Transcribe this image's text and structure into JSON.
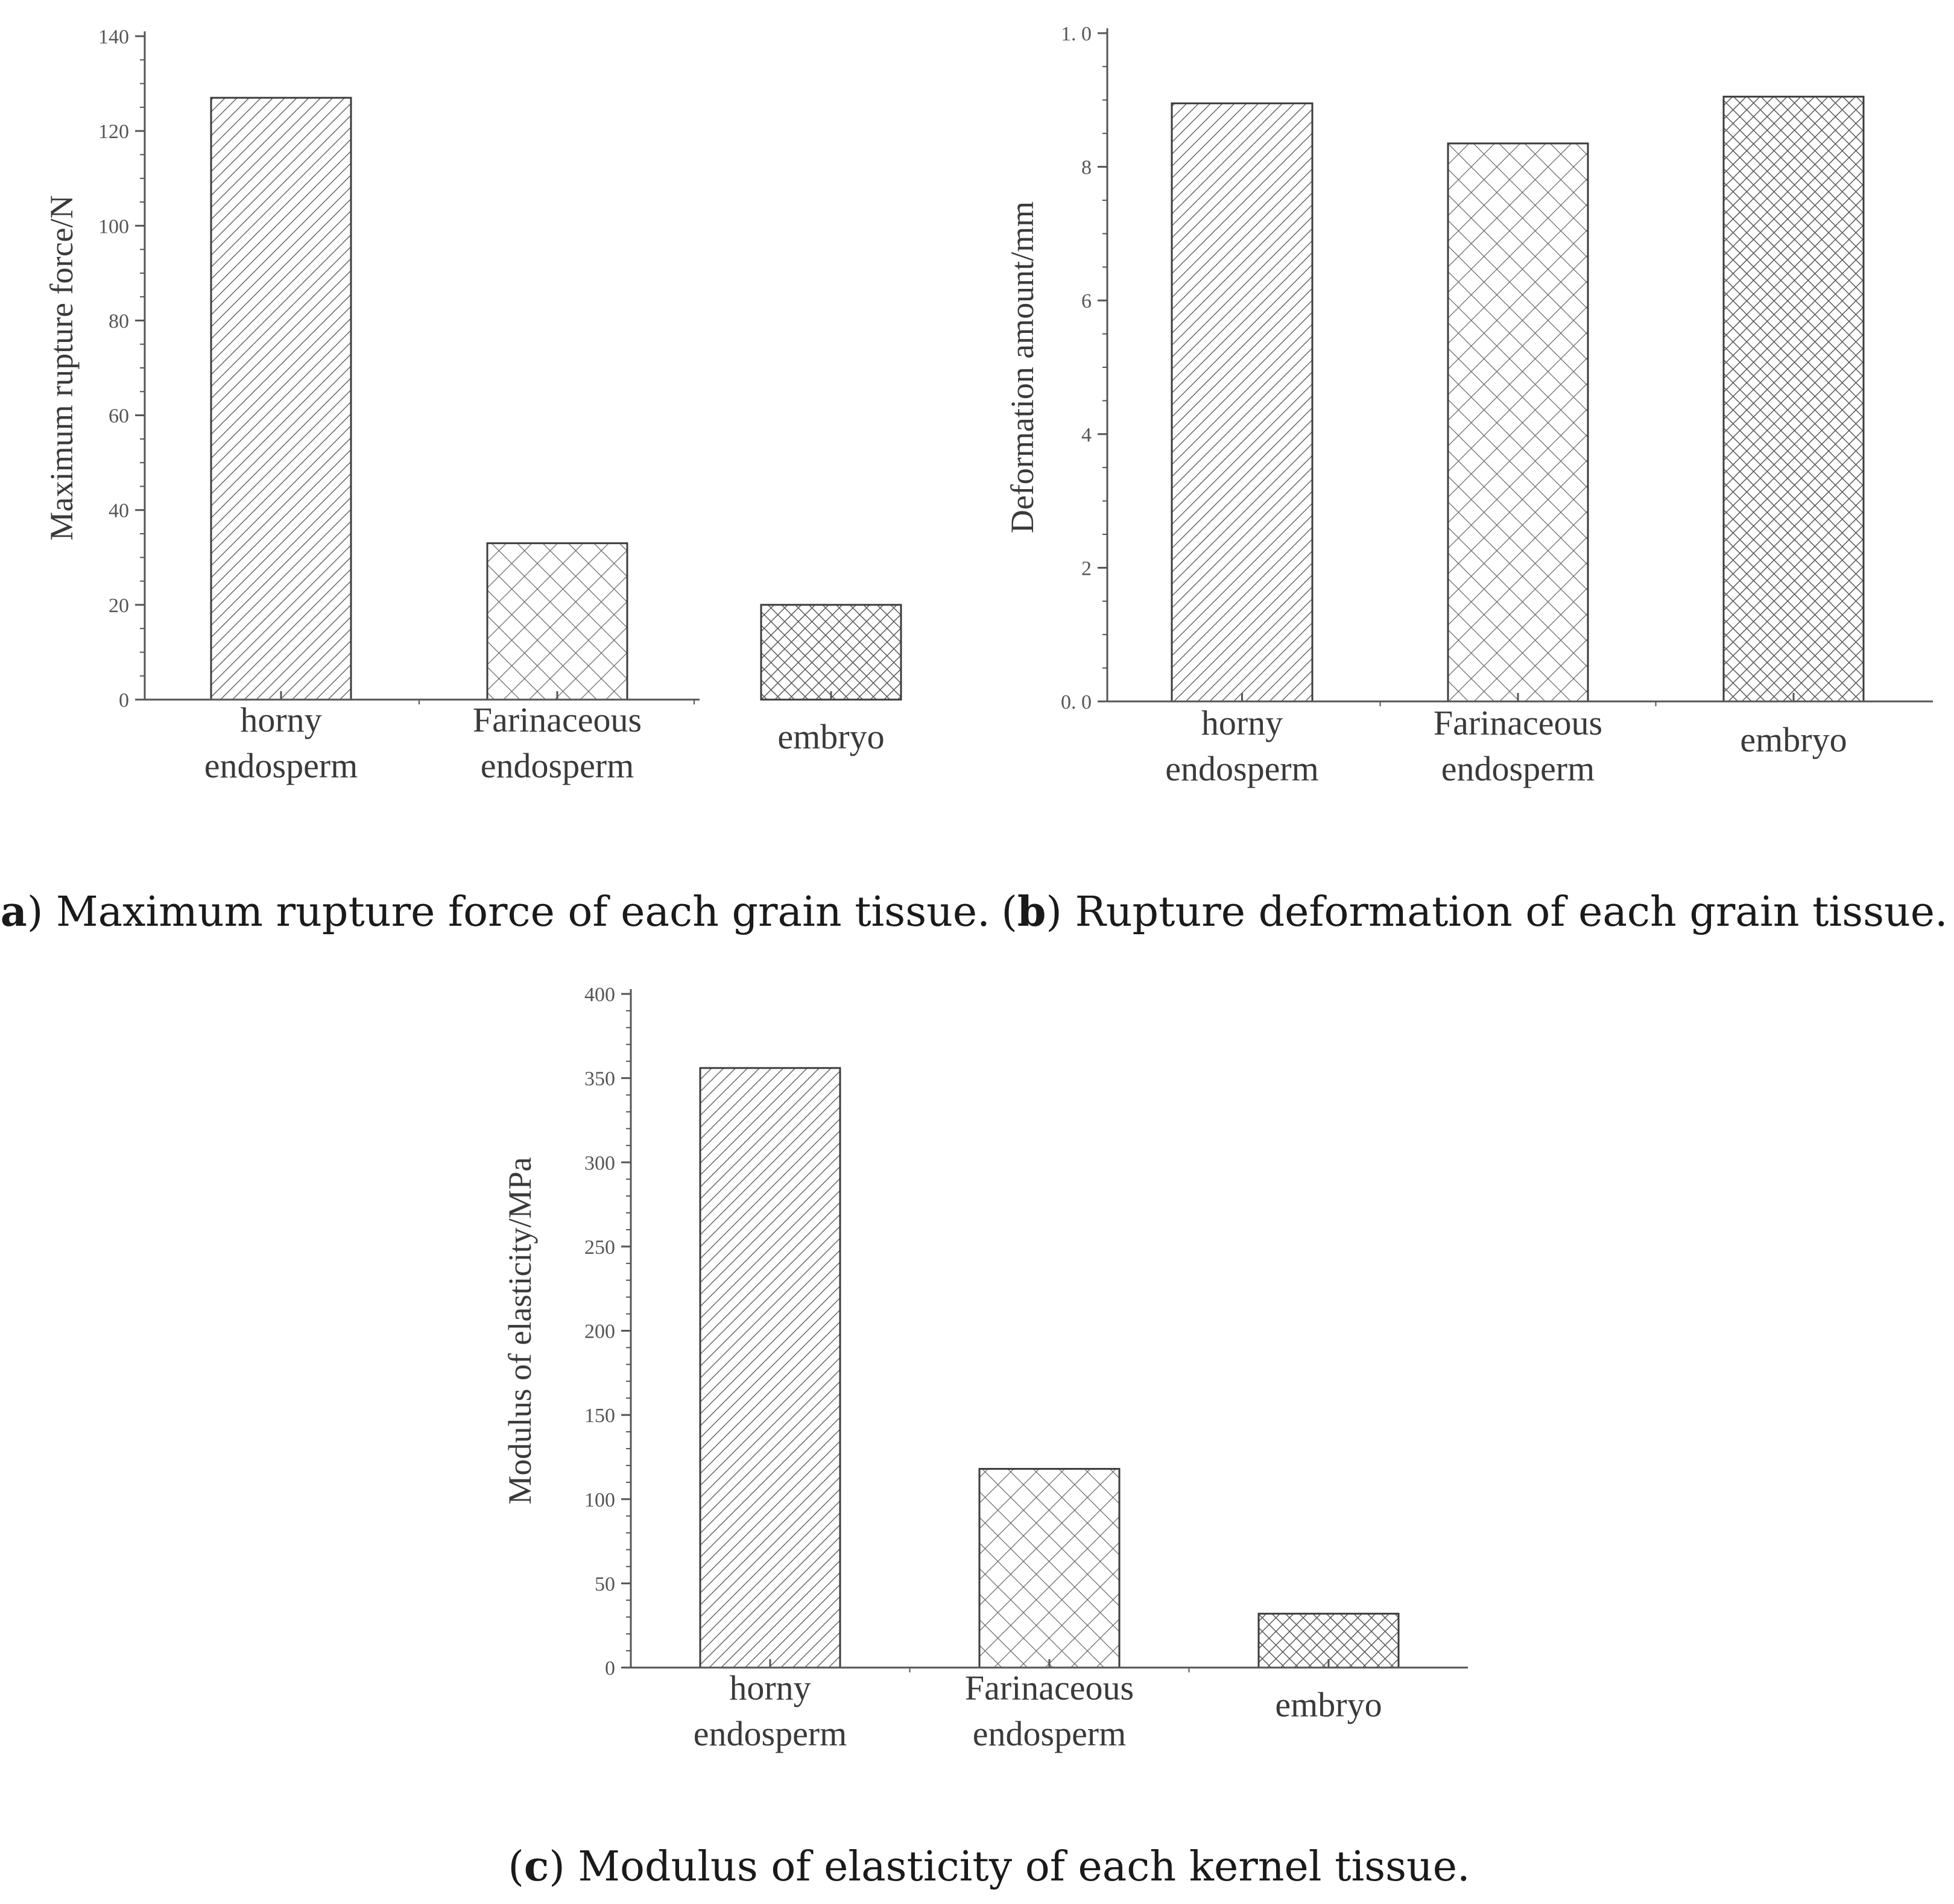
{
  "chart_data": [
    {
      "type": "bar",
      "categories": [
        "horny endosperm",
        "Farinaceous endosperm",
        "embryo"
      ],
      "category_lines": [
        [
          "horny",
          "endosperm"
        ],
        [
          "Farinaceous",
          "endosperm"
        ],
        [
          "embryo"
        ]
      ],
      "values": [
        127,
        33,
        20
      ],
      "ylabel": "Maximum rupture force/N",
      "ylim": [
        0,
        140
      ],
      "yticks": [
        "0",
        "20",
        "40",
        "60",
        "80",
        "100",
        "120",
        "140"
      ],
      "ytick_values": [
        0,
        20,
        40,
        60,
        80,
        100,
        120,
        140
      ],
      "minor_ytick_step": 5,
      "patterns": [
        "diagonal-hatch",
        "crosshatch",
        "fine-crosshatch"
      ],
      "caption_letter": "a",
      "caption_text": "Maximum rupture force of each grain tissue."
    },
    {
      "type": "bar",
      "categories": [
        "horny endosperm",
        "Farinaceous endosperm",
        "embryo"
      ],
      "category_lines": [
        [
          "horny",
          "endosperm"
        ],
        [
          "Farinaceous",
          "endosperm"
        ],
        [
          "embryo"
        ]
      ],
      "values": [
        0.895,
        0.835,
        0.905
      ],
      "ylabel": "Deformation amount/mm",
      "ylim": [
        0,
        1.0
      ],
      "yticks": [
        "0. 0",
        "2",
        "4",
        "6",
        "8",
        "1. 0"
      ],
      "ytick_values": [
        0,
        0.2,
        0.4,
        0.6,
        0.8,
        1.0
      ],
      "minor_ytick_step": 0.05,
      "patterns": [
        "diagonal-hatch",
        "crosshatch",
        "fine-crosshatch"
      ],
      "caption_letter": "b",
      "caption_text": "Rupture deformation of each grain tissue."
    },
    {
      "type": "bar",
      "categories": [
        "horny endosperm",
        "Farinaceous endosperm",
        "embryo"
      ],
      "category_lines": [
        [
          "horny",
          "endosperm"
        ],
        [
          "Farinaceous",
          "endosperm"
        ],
        [
          "embryo"
        ]
      ],
      "values": [
        356,
        118,
        32
      ],
      "ylabel": "Modulus of elasticity/MPa",
      "ylim": [
        0,
        400
      ],
      "yticks": [
        "0",
        "50",
        "100",
        "150",
        "200",
        "250",
        "300",
        "350",
        "400"
      ],
      "ytick_values": [
        0,
        50,
        100,
        150,
        200,
        250,
        300,
        350,
        400
      ],
      "minor_ytick_step": 10,
      "patterns": [
        "diagonal-hatch",
        "crosshatch",
        "fine-crosshatch"
      ],
      "caption_letter": "c",
      "caption_text": "Modulus of elasticity of each kernel tissue."
    }
  ],
  "colors": {
    "axis": "#555555",
    "bar_outline": "#3c3c3c",
    "hatch": "#6a6a6a",
    "caption": "#1a1a1a"
  }
}
